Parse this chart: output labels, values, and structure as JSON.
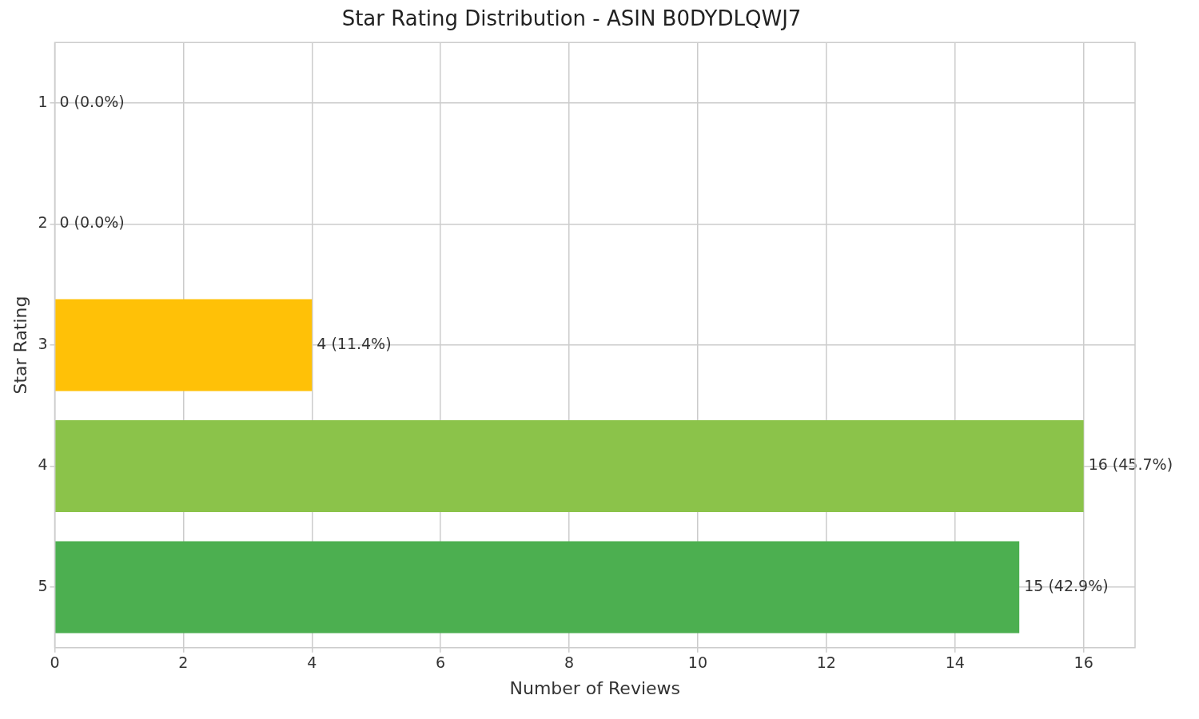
{
  "chart_data": {
    "type": "bar",
    "orientation": "horizontal",
    "title": "Star Rating Distribution - ASIN B0DYDLQWJ7",
    "xlabel": "Number of Reviews",
    "ylabel": "Star Rating",
    "categories": [
      "1",
      "2",
      "3",
      "4",
      "5"
    ],
    "values": [
      0,
      0,
      4,
      16,
      15
    ],
    "colors": [
      "#f44336",
      "#ff9800",
      "#ffc107",
      "#8bc34a",
      "#4caf50"
    ],
    "value_labels": [
      "0 (0.0%)",
      "0 (0.0%)",
      "4 (11.4%)",
      "16 (45.7%)",
      "15 (42.9%)"
    ],
    "xlim": [
      0,
      16.8
    ],
    "xticks": [
      0,
      2,
      4,
      6,
      8,
      10,
      12,
      14,
      16
    ],
    "grid": true,
    "legend": false
  }
}
